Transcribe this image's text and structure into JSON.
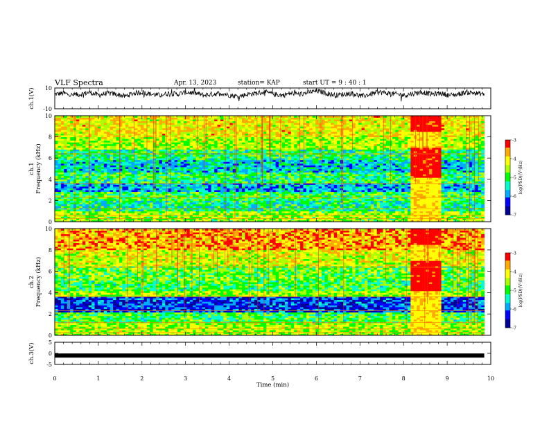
{
  "header": {
    "title": "VLF Spectra",
    "date": "Apr. 13, 2023",
    "station": "station= KAP",
    "start": "start  UT  =   9 : 40 : 1"
  },
  "chart_data": [
    {
      "type": "line",
      "panel": "ch1-waveform",
      "ylabel": "ch.1(V)",
      "ylim": [
        -10,
        10
      ],
      "yticks": [
        "10",
        "-10"
      ],
      "xlim": [
        0,
        10
      ],
      "series": [
        {
          "values_approx": [
            4,
            5,
            3,
            4,
            6,
            3,
            5,
            4,
            2,
            5,
            6,
            4,
            3,
            5,
            4,
            6,
            5,
            3,
            4,
            5,
            3,
            2,
            4,
            5,
            6,
            4,
            3,
            5,
            4,
            6,
            7,
            5,
            3,
            4,
            5,
            2,
            4,
            6,
            5,
            4,
            3,
            5,
            6,
            4,
            5,
            3,
            4,
            6,
            5,
            4
          ]
        }
      ]
    },
    {
      "type": "heatmap",
      "panel": "ch1-spectrogram",
      "ylabel": "ch.1\nFrequency (kHz)",
      "ylim": [
        0,
        10
      ],
      "yticks": [
        "0",
        "2",
        "4",
        "6",
        "8",
        "10"
      ],
      "xlim": [
        0,
        10
      ],
      "colorbar": {
        "label": "log(PSD)(V²/Hz)",
        "range": [
          -7,
          -3
        ],
        "ticks": [
          "-3",
          "-4",
          "-5",
          "-6",
          "-7"
        ]
      }
    },
    {
      "type": "heatmap",
      "panel": "ch2-spectrogram",
      "ylabel": "ch.2\nFrequency (kHz)",
      "ylim": [
        0,
        10
      ],
      "yticks": [
        "0",
        "2",
        "4",
        "6",
        "8",
        "10"
      ],
      "xlim": [
        0,
        10
      ],
      "colorbar": {
        "label": "log(PSD)(V²/Hz)",
        "range": [
          -7,
          -3
        ],
        "ticks": [
          "-3",
          "-4",
          "-5",
          "-6",
          "-7"
        ]
      }
    },
    {
      "type": "line",
      "panel": "ch3-waveform",
      "ylabel": "ch.3(V)",
      "ylim": [
        -5,
        5
      ],
      "yticks": [
        "5",
        "0",
        "-5"
      ],
      "xlim": [
        0,
        10
      ],
      "series": [
        {
          "value": -1
        }
      ]
    }
  ],
  "xaxis": {
    "label": "Time  (min)",
    "ticks": [
      "0",
      "1",
      "2",
      "3",
      "4",
      "5",
      "6",
      "7",
      "8",
      "9",
      "10"
    ]
  },
  "colors": {
    "colormap": [
      "#000099",
      "#0000ff",
      "#00aaff",
      "#00ffcc",
      "#00ff00",
      "#aaff00",
      "#ffff00",
      "#ffaa00",
      "#ff0000"
    ]
  }
}
